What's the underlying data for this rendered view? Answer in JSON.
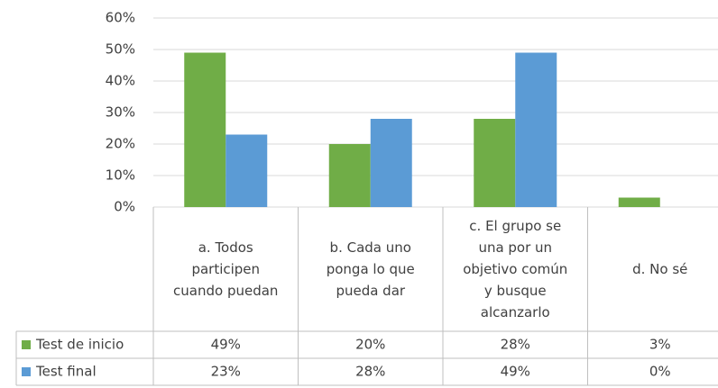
{
  "chart_data": {
    "type": "bar",
    "categories": [
      "a. Todos participen cuando puedan",
      "b. Cada uno ponga lo que pueda dar",
      "c. El grupo se una por un objetivo común y busque alcanzarlo",
      "d. No sé"
    ],
    "series": [
      {
        "name": "Test de inicio",
        "color": "#70ad47",
        "values": [
          49,
          20,
          28,
          3
        ],
        "value_labels": [
          "49%",
          "20%",
          "28%",
          "3%"
        ]
      },
      {
        "name": "Test final",
        "color": "#5b9bd5",
        "values": [
          23,
          28,
          49,
          0
        ],
        "value_labels": [
          "23%",
          "28%",
          "49%",
          "0%"
        ]
      }
    ],
    "ylim": [
      0,
      60
    ],
    "yticks": [
      {
        "value": 0,
        "label": "0%"
      },
      {
        "value": 10,
        "label": "10%"
      },
      {
        "value": 20,
        "label": "20%"
      },
      {
        "value": 30,
        "label": "30%"
      },
      {
        "value": 40,
        "label": "40%"
      },
      {
        "value": 50,
        "label": "50%"
      },
      {
        "value": 60,
        "label": "60%"
      }
    ],
    "grid": true
  }
}
